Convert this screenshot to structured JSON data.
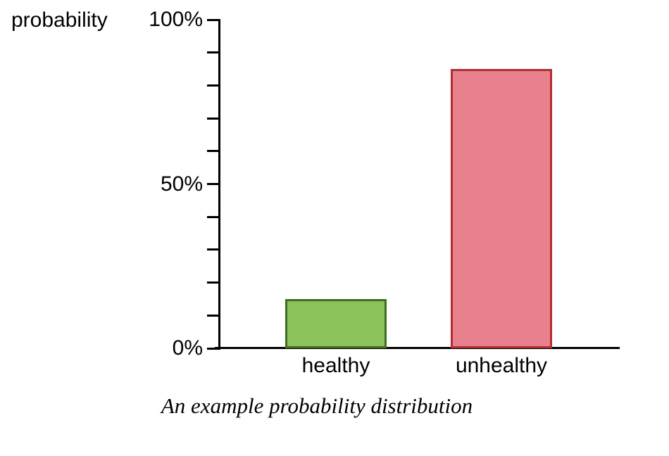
{
  "figure": {
    "background": "#ffffff",
    "caption": "An example probability distribution"
  },
  "chart_data": {
    "type": "bar",
    "title": "An example probability distribution",
    "ylabel": "probability",
    "xlabel": "",
    "categories": [
      "healthy",
      "unhealthy"
    ],
    "values": [
      15,
      85
    ],
    "value_unit": "%",
    "ylim": [
      0,
      100
    ],
    "ytick_step": 10,
    "ytick_labels": [
      {
        "value": 100,
        "label": "100%"
      },
      {
        "value": 50,
        "label": "50%"
      },
      {
        "value": 0,
        "label": "0%"
      }
    ],
    "bar_colors": [
      {
        "category": "healthy",
        "fill": "#8cc25c",
        "border": "#3f6e1d"
      },
      {
        "category": "unhealthy",
        "fill": "#e8808d",
        "border": "#b12d31"
      }
    ],
    "axis_color": "#000000",
    "grid": false,
    "legend": "none"
  }
}
